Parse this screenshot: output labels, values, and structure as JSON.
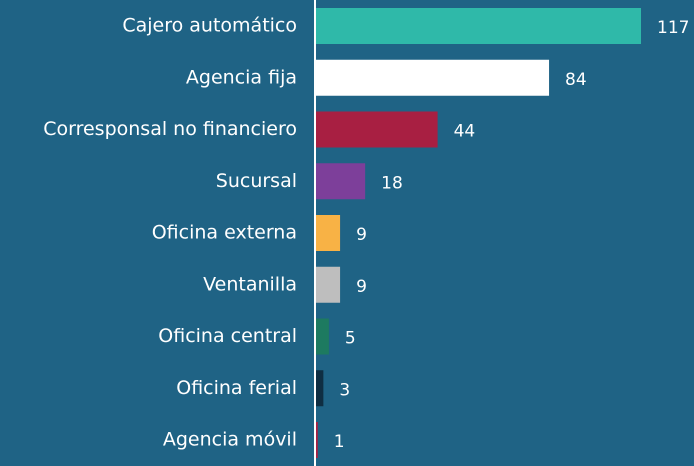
{
  "chart_data": {
    "type": "hbar",
    "categories": [
      "Cajero automático",
      "Agencia fija",
      "Corresponsal no financiero",
      "Sucursal",
      "Oficina externa",
      "Ventanilla",
      "Oficina central",
      "Oficina ferial",
      "Agencia móvil"
    ],
    "values": [
      117,
      84,
      44,
      18,
      9,
      9,
      5,
      3,
      1
    ],
    "colors": [
      "#2fb9a9",
      "#ffffff",
      "#a81f42",
      "#7d3f9a",
      "#f8b245",
      "#bebebe",
      "#1d7a60",
      "#0f2e42",
      "#a81f42"
    ],
    "background": "#1f6385"
  }
}
